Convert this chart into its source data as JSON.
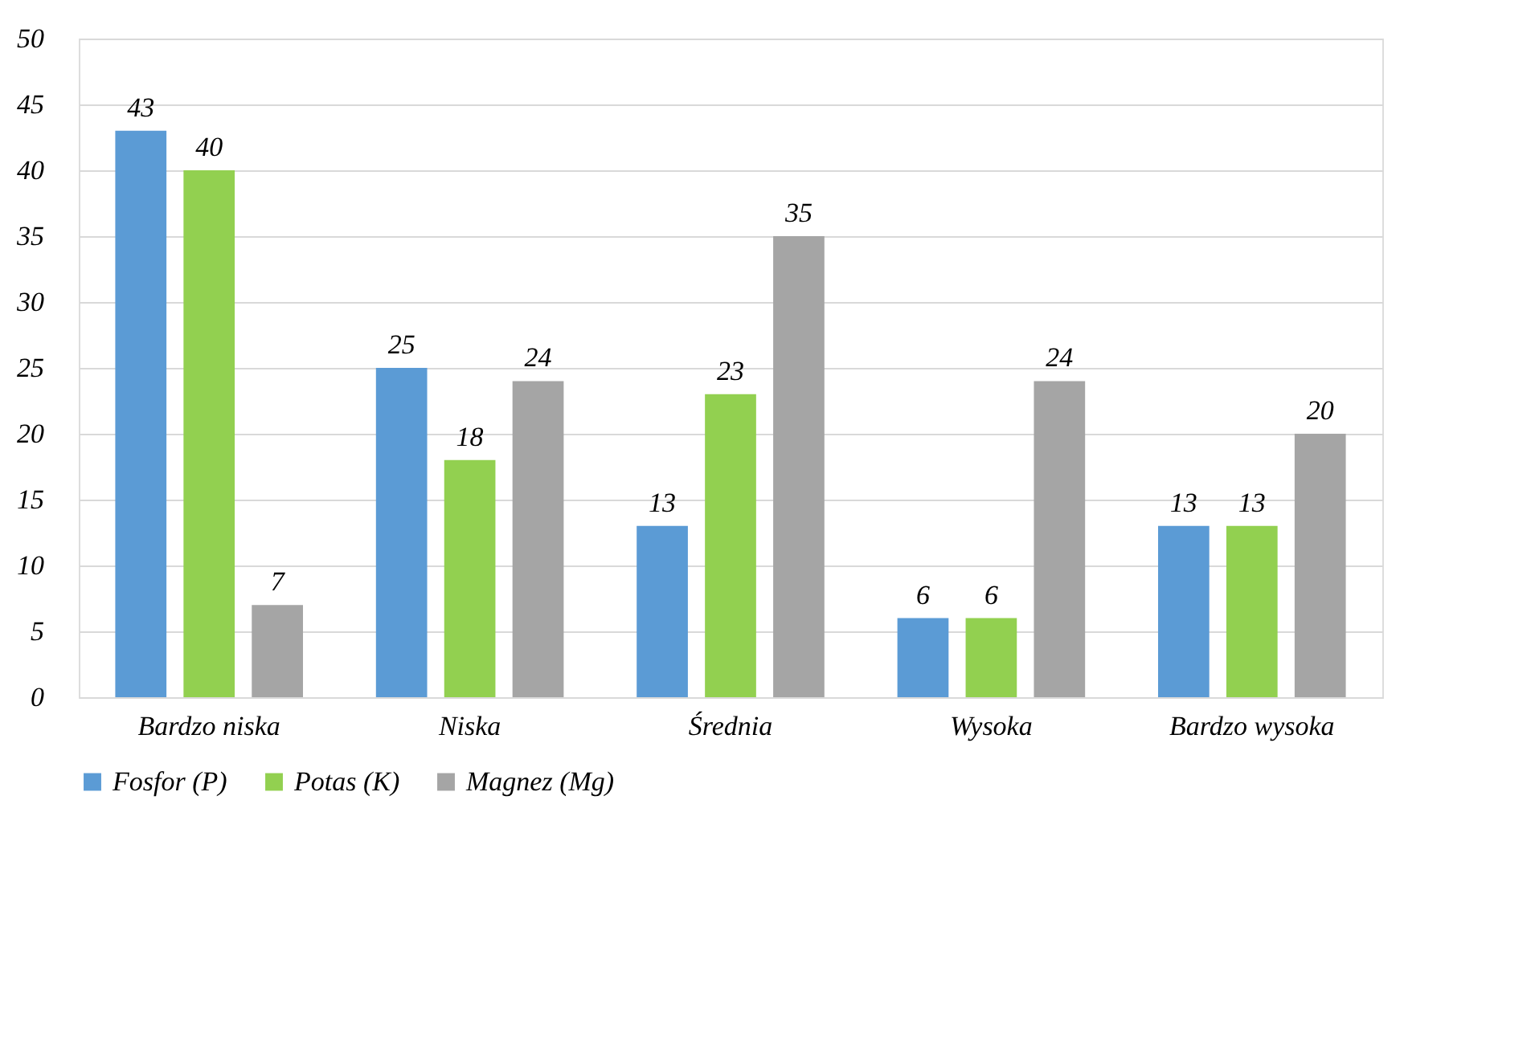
{
  "chart_data": {
    "type": "bar",
    "categories": [
      "Bardzo niska",
      "Niska",
      "Średnia",
      "Wysoka",
      "Bardzo wysoka"
    ],
    "series": [
      {
        "name": "Fosfor (P)",
        "color": "#5b9bd5",
        "values": [
          43,
          25,
          13,
          6,
          13
        ]
      },
      {
        "name": "Potas (K)",
        "color": "#92d050",
        "values": [
          40,
          18,
          23,
          6,
          13
        ]
      },
      {
        "name": "Magnez (Mg)",
        "color": "#a5a5a5",
        "values": [
          7,
          24,
          35,
          24,
          20
        ]
      }
    ],
    "ylim": [
      0,
      50
    ],
    "yticks": [
      0,
      5,
      10,
      15,
      20,
      25,
      30,
      35,
      40,
      45,
      50
    ],
    "grid": "y",
    "legend": "bottom",
    "data_labels": true
  }
}
